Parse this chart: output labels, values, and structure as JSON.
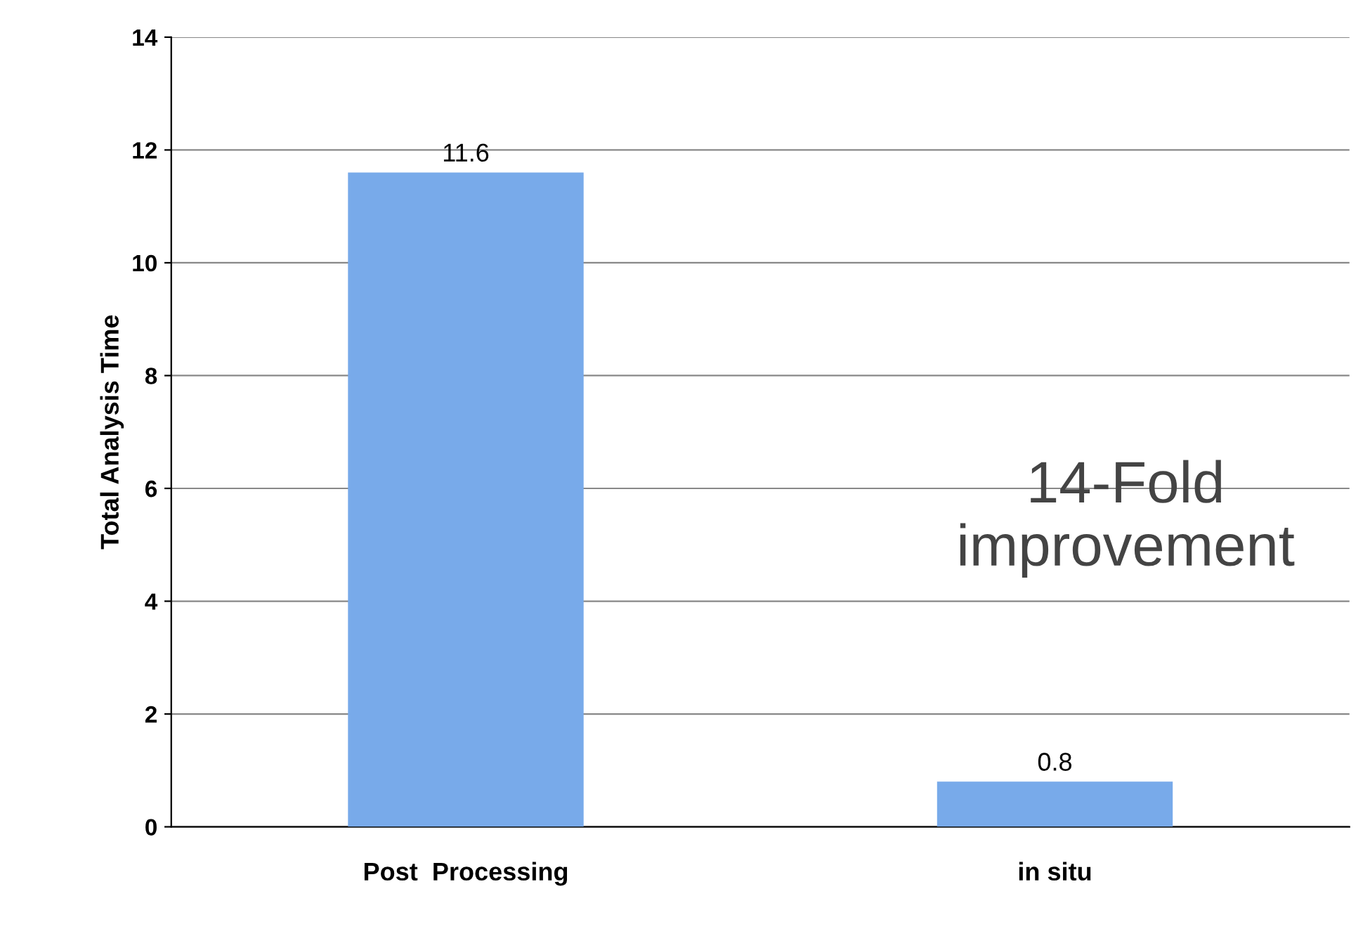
{
  "chart_data": {
    "type": "bar",
    "ylabel": "Total Analysis Time",
    "categories": [
      "Post  Processing",
      "in situ"
    ],
    "values": [
      11.6,
      0.8
    ],
    "color": "#78aaea",
    "ylim": [
      0,
      14
    ],
    "yticks": [
      0,
      2,
      4,
      6,
      8,
      10,
      12,
      14
    ],
    "grid": "y",
    "data_labels": true,
    "annotations": [
      "14-Fold\nimprovement"
    ]
  }
}
